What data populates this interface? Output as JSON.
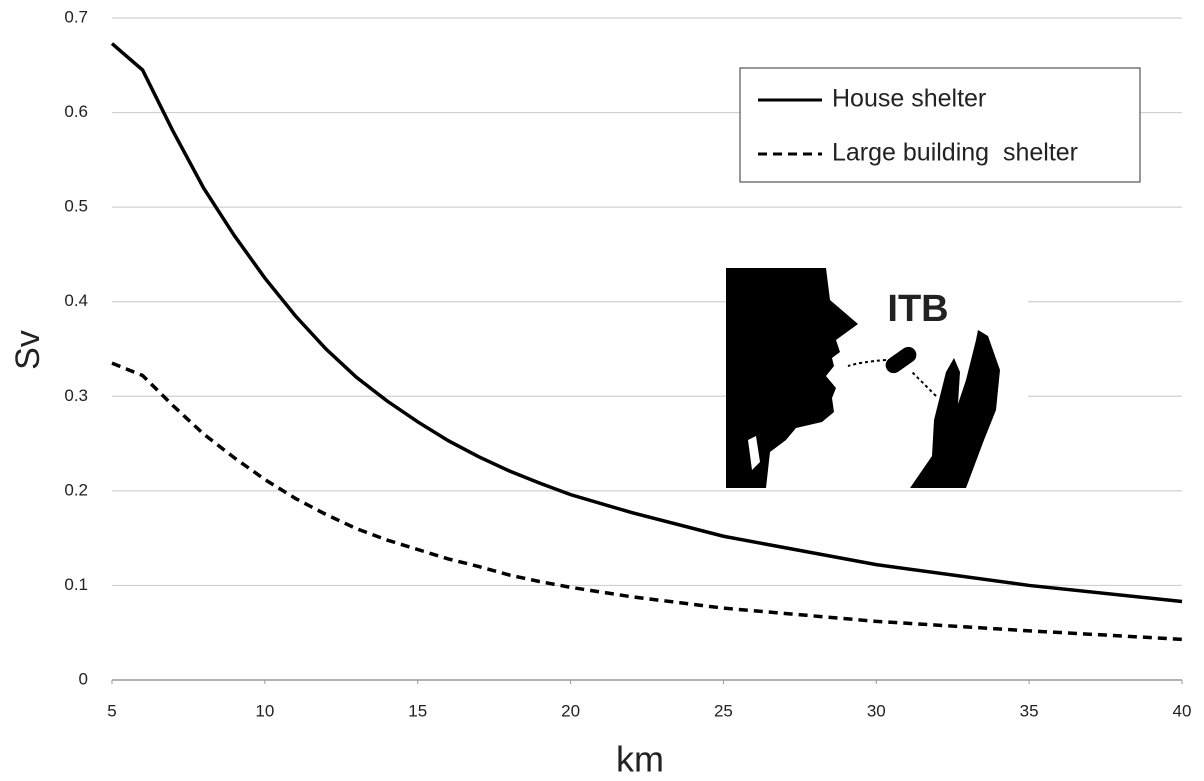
{
  "chart_data": {
    "type": "line",
    "x_label": "km",
    "y_label": "Sv",
    "annotation": "ITB",
    "x": [
      5,
      6,
      7,
      8,
      9,
      10,
      11,
      12,
      13,
      14,
      15,
      16,
      17,
      18,
      19,
      20,
      22,
      25,
      30,
      35,
      40
    ],
    "series": [
      {
        "name": "House shelter",
        "color": "#000000",
        "dash": "solid",
        "values": [
          0.673,
          0.645,
          0.58,
          0.52,
          0.47,
          0.425,
          0.385,
          0.35,
          0.32,
          0.295,
          0.273,
          0.253,
          0.236,
          0.221,
          0.208,
          0.196,
          0.177,
          0.152,
          0.122,
          0.1,
          0.083
        ]
      },
      {
        "name": "Large building  shelter",
        "color": "#000000",
        "dash": "dashed",
        "values": [
          0.335,
          0.322,
          0.29,
          0.26,
          0.235,
          0.212,
          0.192,
          0.175,
          0.16,
          0.148,
          0.138,
          0.128,
          0.12,
          0.111,
          0.104,
          0.098,
          0.088,
          0.076,
          0.062,
          0.052,
          0.043
        ]
      }
    ],
    "xlim": [
      5,
      40
    ],
    "xticks": [
      5,
      10,
      15,
      20,
      25,
      30,
      35,
      40
    ],
    "ylim": [
      0,
      0.7
    ],
    "yticks": [
      0,
      0.1,
      0.2,
      0.3,
      0.4,
      0.5,
      0.6,
      0.7
    ],
    "grid": true,
    "legend": "upper right"
  }
}
